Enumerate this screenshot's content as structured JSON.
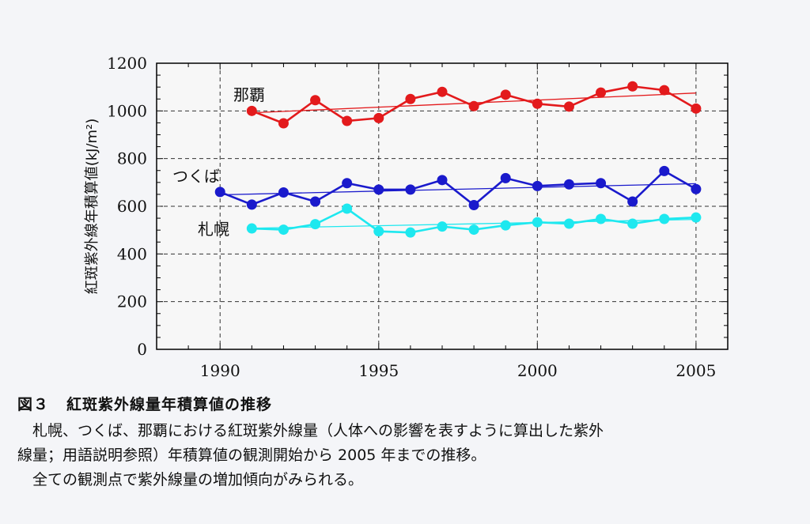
{
  "caption": {
    "figure_number": "図３",
    "title": "紅斑紫外線量年積算値の推移",
    "body_line1": "札幌、つくば、那覇における紅斑紫外線量（人体への影響を表すように算出した紫外",
    "body_line2": "線量；用語説明参照）年積算値の観測開始から 2005 年までの推移。",
    "body_line3": "全ての観測点で紫外線量の増加傾向がみられる。"
  },
  "chart_data": {
    "type": "line",
    "title": "",
    "xlabel": "",
    "ylabel": "紅斑紫外線年積算値(kJ/m²)",
    "xlim": [
      1988,
      2006
    ],
    "ylim": [
      0,
      1200
    ],
    "xticks": [
      1990,
      1995,
      2000,
      2005
    ],
    "yticks": [
      0,
      200,
      400,
      600,
      800,
      1000,
      1200
    ],
    "grid": true,
    "series": [
      {
        "name": "那覇",
        "color": "#e31a1c",
        "x": [
          1991,
          1992,
          1993,
          1994,
          1995,
          1996,
          1997,
          1998,
          1999,
          2000,
          2001,
          2002,
          2003,
          2004,
          2005
        ],
        "y": [
          1000,
          948,
          1045,
          958,
          970,
          1050,
          1080,
          1020,
          1068,
          1030,
          1018,
          1077,
          1103,
          1087,
          1010
        ],
        "trend": [
          [
            1991,
            992
          ],
          [
            2005,
            1075
          ]
        ]
      },
      {
        "name": "つくば",
        "color": "#1a1acc",
        "x": [
          1990,
          1991,
          1992,
          1993,
          1994,
          1995,
          1996,
          1997,
          1998,
          1999,
          2000,
          2001,
          2002,
          2003,
          2004,
          2005
        ],
        "y": [
          660,
          607,
          658,
          620,
          697,
          670,
          670,
          710,
          605,
          718,
          685,
          692,
          697,
          620,
          748,
          672
        ],
        "trend": [
          [
            1990,
            648
          ],
          [
            2005,
            695
          ]
        ]
      },
      {
        "name": "札幌",
        "color": "#1ee8ef",
        "x": [
          1991,
          1992,
          1993,
          1994,
          1995,
          1996,
          1997,
          1998,
          1999,
          2000,
          2001,
          2002,
          2003,
          2004,
          2005
        ],
        "y": [
          507,
          502,
          525,
          590,
          495,
          490,
          515,
          502,
          520,
          533,
          527,
          547,
          527,
          547,
          553
        ],
        "trend": [
          [
            1991,
            508
          ],
          [
            2005,
            545
          ]
        ]
      }
    ]
  }
}
